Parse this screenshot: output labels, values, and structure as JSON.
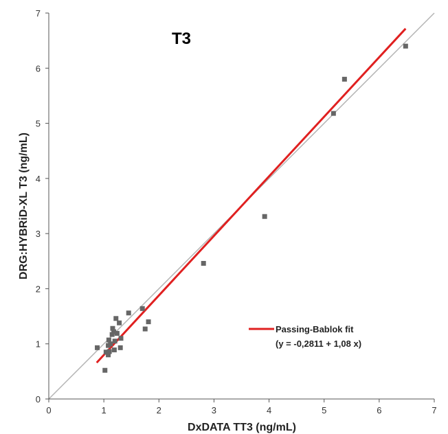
{
  "chart_data": {
    "type": "scatter",
    "title": "T3",
    "xlabel": "DxDATA TT3 (ng/mL)",
    "ylabel": "DRG:HYBRiD-XL T3 (ng/mL)",
    "xlim": [
      0,
      7
    ],
    "ylim": [
      0,
      7
    ],
    "xticks": [
      "0",
      "1",
      "2",
      "3",
      "4",
      "5",
      "6",
      "7"
    ],
    "yticks": [
      "0",
      "1",
      "2",
      "3",
      "4",
      "5",
      "6",
      "7"
    ],
    "grid": false,
    "legend_position": "bottom-right",
    "colors": {
      "points": "#666666",
      "fit_line": "#e02020",
      "identity_line": "#b4b4b4",
      "axis": "#555555"
    },
    "points": [
      {
        "x": 0.88,
        "y": 0.93
      },
      {
        "x": 1.02,
        "y": 0.52
      },
      {
        "x": 1.04,
        "y": 0.85
      },
      {
        "x": 1.08,
        "y": 0.8
      },
      {
        "x": 1.08,
        "y": 0.97
      },
      {
        "x": 1.09,
        "y": 1.07
      },
      {
        "x": 1.1,
        "y": 0.86
      },
      {
        "x": 1.12,
        "y": 1.0
      },
      {
        "x": 1.15,
        "y": 1.17
      },
      {
        "x": 1.16,
        "y": 1.28
      },
      {
        "x": 1.18,
        "y": 1.22
      },
      {
        "x": 1.19,
        "y": 0.89
      },
      {
        "x": 1.2,
        "y": 1.05
      },
      {
        "x": 1.22,
        "y": 1.46
      },
      {
        "x": 1.24,
        "y": 1.19
      },
      {
        "x": 1.28,
        "y": 1.38
      },
      {
        "x": 1.3,
        "y": 0.93
      },
      {
        "x": 1.31,
        "y": 1.1
      },
      {
        "x": 1.45,
        "y": 1.56
      },
      {
        "x": 1.7,
        "y": 1.64
      },
      {
        "x": 1.75,
        "y": 1.27
      },
      {
        "x": 1.81,
        "y": 1.4
      },
      {
        "x": 2.81,
        "y": 2.46
      },
      {
        "x": 3.92,
        "y": 3.31
      },
      {
        "x": 5.17,
        "y": 5.18
      },
      {
        "x": 5.37,
        "y": 5.8
      },
      {
        "x": 6.48,
        "y": 6.4
      }
    ],
    "fit": {
      "label": "Passing-Bablok fit",
      "equation": "(y = -0,2811 + 1,08 x)",
      "intercept": -0.2811,
      "slope": 1.08,
      "x_range": [
        0.87,
        6.48
      ]
    },
    "identity_line": {
      "x_range": [
        0,
        7
      ]
    }
  }
}
